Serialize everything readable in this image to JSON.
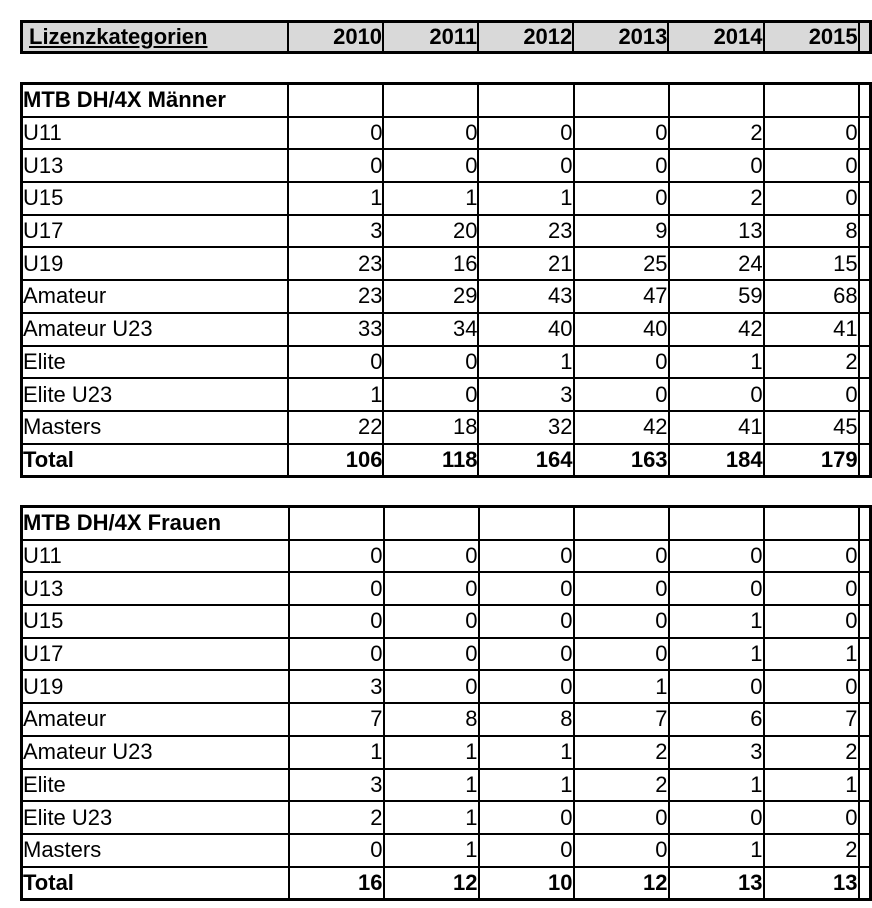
{
  "colors": {
    "header_bg": "#d9d9d9",
    "border": "#000000",
    "text": "#000000",
    "page_bg": "#ffffff"
  },
  "header": {
    "label": "Lizenzkategorien",
    "years": [
      "2010",
      "2011",
      "2012",
      "2013",
      "2014",
      "2015"
    ]
  },
  "tables": [
    {
      "title": "MTB DH/4X Männer",
      "rows": [
        {
          "label": "U11",
          "values": [
            0,
            0,
            0,
            0,
            2,
            0
          ]
        },
        {
          "label": "U13",
          "values": [
            0,
            0,
            0,
            0,
            0,
            0
          ]
        },
        {
          "label": "U15",
          "values": [
            1,
            1,
            1,
            0,
            2,
            0
          ]
        },
        {
          "label": "U17",
          "values": [
            3,
            20,
            23,
            9,
            13,
            8
          ]
        },
        {
          "label": "U19",
          "values": [
            23,
            16,
            21,
            25,
            24,
            15
          ]
        },
        {
          "label": "Amateur",
          "values": [
            23,
            29,
            43,
            47,
            59,
            68
          ]
        },
        {
          "label": "Amateur U23",
          "values": [
            33,
            34,
            40,
            40,
            42,
            41
          ]
        },
        {
          "label": "Elite",
          "values": [
            0,
            0,
            1,
            0,
            1,
            2
          ]
        },
        {
          "label": "Elite U23",
          "values": [
            1,
            0,
            3,
            0,
            0,
            0
          ]
        },
        {
          "label": "Masters",
          "values": [
            22,
            18,
            32,
            42,
            41,
            45
          ]
        }
      ],
      "total": {
        "label": "Total",
        "values": [
          106,
          118,
          164,
          163,
          184,
          179
        ]
      }
    },
    {
      "title": "MTB DH/4X Frauen",
      "rows": [
        {
          "label": "U11",
          "values": [
            0,
            0,
            0,
            0,
            0,
            0
          ]
        },
        {
          "label": "U13",
          "values": [
            0,
            0,
            0,
            0,
            0,
            0
          ]
        },
        {
          "label": "U15",
          "values": [
            0,
            0,
            0,
            0,
            1,
            0
          ]
        },
        {
          "label": "U17",
          "values": [
            0,
            0,
            0,
            0,
            1,
            1
          ]
        },
        {
          "label": "U19",
          "values": [
            3,
            0,
            0,
            1,
            0,
            0
          ]
        },
        {
          "label": "Amateur",
          "values": [
            7,
            8,
            8,
            7,
            6,
            7
          ]
        },
        {
          "label": "Amateur U23",
          "values": [
            1,
            1,
            1,
            2,
            3,
            2
          ]
        },
        {
          "label": "Elite",
          "values": [
            3,
            1,
            1,
            2,
            1,
            1
          ]
        },
        {
          "label": "Elite U23",
          "values": [
            2,
            1,
            0,
            0,
            0,
            0
          ]
        },
        {
          "label": "Masters",
          "values": [
            0,
            1,
            0,
            0,
            1,
            2
          ]
        }
      ],
      "total": {
        "label": "Total",
        "values": [
          16,
          12,
          10,
          12,
          13,
          13
        ]
      }
    }
  ]
}
